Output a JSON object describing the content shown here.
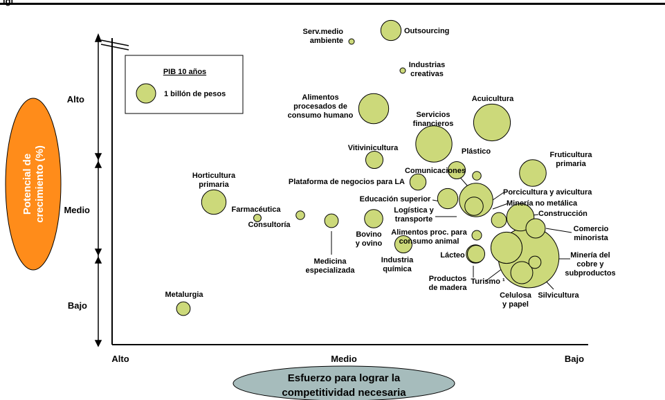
{
  "header": {
    "text": "igi"
  },
  "chart_data": {
    "type": "scatter",
    "subtype": "bubble",
    "ylabel": "Potencial de crecimiento (%)",
    "ylabel_lines": [
      "Potencial de",
      "crecimiento (%)"
    ],
    "xlabel": "Esfuerzo para lograr la competitividad necesaria",
    "xlabel_lines": [
      "Esfuerzo para lograr la",
      "competitividad necesaria"
    ],
    "y_categories": [
      "Alto",
      "Medio",
      "Bajo"
    ],
    "x_categories": [
      "Alto",
      "Medio",
      "Bajo"
    ],
    "legend": {
      "title": "PIB 10 años",
      "entry": "1 billón de pesos"
    },
    "colors": {
      "bubble_fill": "#ccd97a",
      "bubble_stroke": "#000000",
      "ylabel_oval": "#ff8c1a",
      "xlabel_oval": "#a6bcbc"
    },
    "points": [
      {
        "id": "outsourcing",
        "label": [
          "Outsourcing"
        ],
        "size": 1.1
      },
      {
        "id": "serv-medio-ambiente",
        "label": [
          "Serv.medio",
          "ambiente"
        ],
        "size": 0.06
      },
      {
        "id": "industrias-creativas",
        "label": [
          "Industrias",
          "creativas"
        ],
        "size": 0.05
      },
      {
        "id": "alimentos-procesados",
        "label": [
          "Alimentos",
          "procesados de",
          "consumo humano"
        ],
        "size": 2.4
      },
      {
        "id": "acuicultura",
        "label": [
          "Acuicultura"
        ],
        "size": 3.6
      },
      {
        "id": "servicios-financieros",
        "label": [
          "Servicios",
          "financieros"
        ],
        "size": 3.5
      },
      {
        "id": "plastico",
        "label": [
          "Plástico"
        ],
        "size": 0.2
      },
      {
        "id": "vitivinicultura",
        "label": [
          "Vitivinicultura"
        ],
        "size": 0.8
      },
      {
        "id": "fruticultura-primaria",
        "label": [
          "Fruticultura",
          "primaria"
        ],
        "size": 1.9
      },
      {
        "id": "comunicaciones",
        "label": [
          "Comunicaciones"
        ],
        "size": 0.8
      },
      {
        "id": "horticultura-primaria",
        "label": [
          "Horticultura",
          "primaria"
        ],
        "size": 1.6
      },
      {
        "id": "plataforma-negocios",
        "label": [
          "Plataforma de negocios para LA"
        ],
        "size": 0.7
      },
      {
        "id": "porcicultura-avicultura",
        "label": [
          "Porcicultura y avicultura"
        ],
        "size": 0.9
      },
      {
        "id": "educacion-superior",
        "label": [
          "Educación superior"
        ],
        "size": 1.1
      },
      {
        "id": "mineria-no-metalica",
        "label": [
          "Minería no metálica"
        ],
        "size": 0.6
      },
      {
        "id": "farmaceutica",
        "label": [
          "Farmacéutica"
        ],
        "size": 0.15
      },
      {
        "id": "logistica-transporte",
        "label": [
          "Logística y",
          "transporte"
        ],
        "size": 3.0
      },
      {
        "id": "construccion",
        "label": [
          "Construcción"
        ],
        "size": 2.0
      },
      {
        "id": "consultoria",
        "label": [
          "Consultoría"
        ],
        "size": 0.2
      },
      {
        "id": "bovino-ovino",
        "label": [
          "Bovino",
          "y ovino"
        ],
        "size": 0.9
      },
      {
        "id": "medicina-especializada",
        "label": [
          "Medicina",
          "especializada"
        ],
        "size": 0.5
      },
      {
        "id": "comercio-minorista",
        "label": [
          "Comercio",
          "minorista"
        ],
        "size": 1.0
      },
      {
        "id": "alimentos-proc-animal",
        "label": [
          "Alimentos proc. para",
          "consumo animal"
        ],
        "size": 0.25
      },
      {
        "id": "industria-quimica",
        "label": [
          "Industria",
          "química"
        ],
        "size": 0.8
      },
      {
        "id": "lacteo",
        "label": [
          "Lácteo"
        ],
        "size": 0.8
      },
      {
        "id": "mineria-cobre",
        "label": [
          "Minería del",
          "cobre y",
          "subproductos"
        ],
        "size": 9.8
      },
      {
        "id": "productos-madera",
        "label": [
          "Productos",
          "de madera"
        ],
        "size": 0.9
      },
      {
        "id": "turismo",
        "label": [
          "Turismo ¹"
        ],
        "size": 2.6
      },
      {
        "id": "silvicultura",
        "label": [
          "Silvicultura"
        ],
        "size": 0.4
      },
      {
        "id": "celulosa-papel",
        "label": [
          "Celulosa",
          "y papel"
        ],
        "size": 1.3
      },
      {
        "id": "metalurgia",
        "label": [
          "Metalurgia"
        ],
        "size": 0.5
      }
    ]
  }
}
